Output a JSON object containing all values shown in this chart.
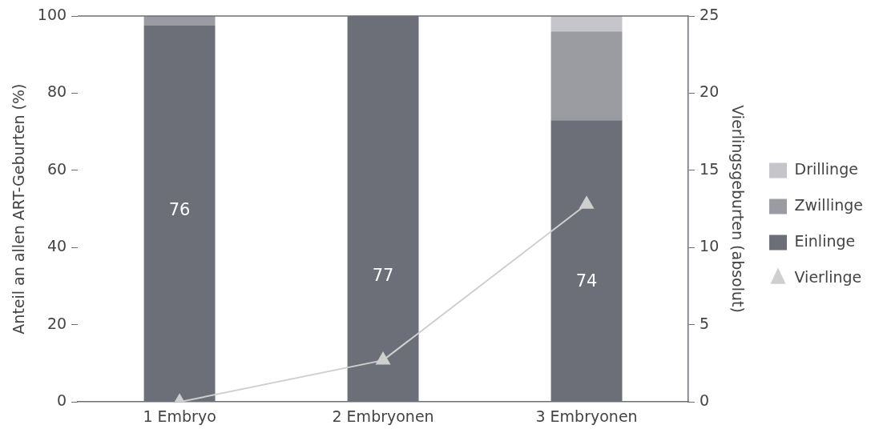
{
  "chart_data": {
    "type": "bar",
    "stacked": true,
    "ylabel": "Anteil an allen ART-Geburten (%)",
    "y2label": "Vierlingsgeburten (absolut)",
    "categories": [
      "1 Embryo",
      "2 Embryonen",
      "3 Embryonen"
    ],
    "series": [
      {
        "name": "Einlinge",
        "color": "#6d6f78",
        "values": [
          97.5,
          100,
          73
        ]
      },
      {
        "name": "Zwillinge",
        "color": "#9b9ca1",
        "values": [
          2.5,
          0,
          23
        ]
      },
      {
        "name": "Drillinge",
        "color": "#c5c5ca",
        "values": [
          0,
          0,
          4
        ]
      },
      {
        "name": "Vierlinge",
        "type": "line",
        "axis": "y2",
        "color": "#cfcfcf",
        "marker": "triangle",
        "values": [
          0,
          2.7,
          12.8
        ]
      }
    ],
    "ylim": [
      0,
      100
    ],
    "yticks": [
      0,
      20,
      40,
      60,
      80,
      100
    ],
    "y2lim": [
      0,
      25
    ],
    "y2ticks": [
      0,
      5,
      10,
      15,
      20,
      25
    ],
    "annotations": [
      "76",
      "77",
      "74"
    ],
    "grid": false,
    "legend": "right"
  }
}
